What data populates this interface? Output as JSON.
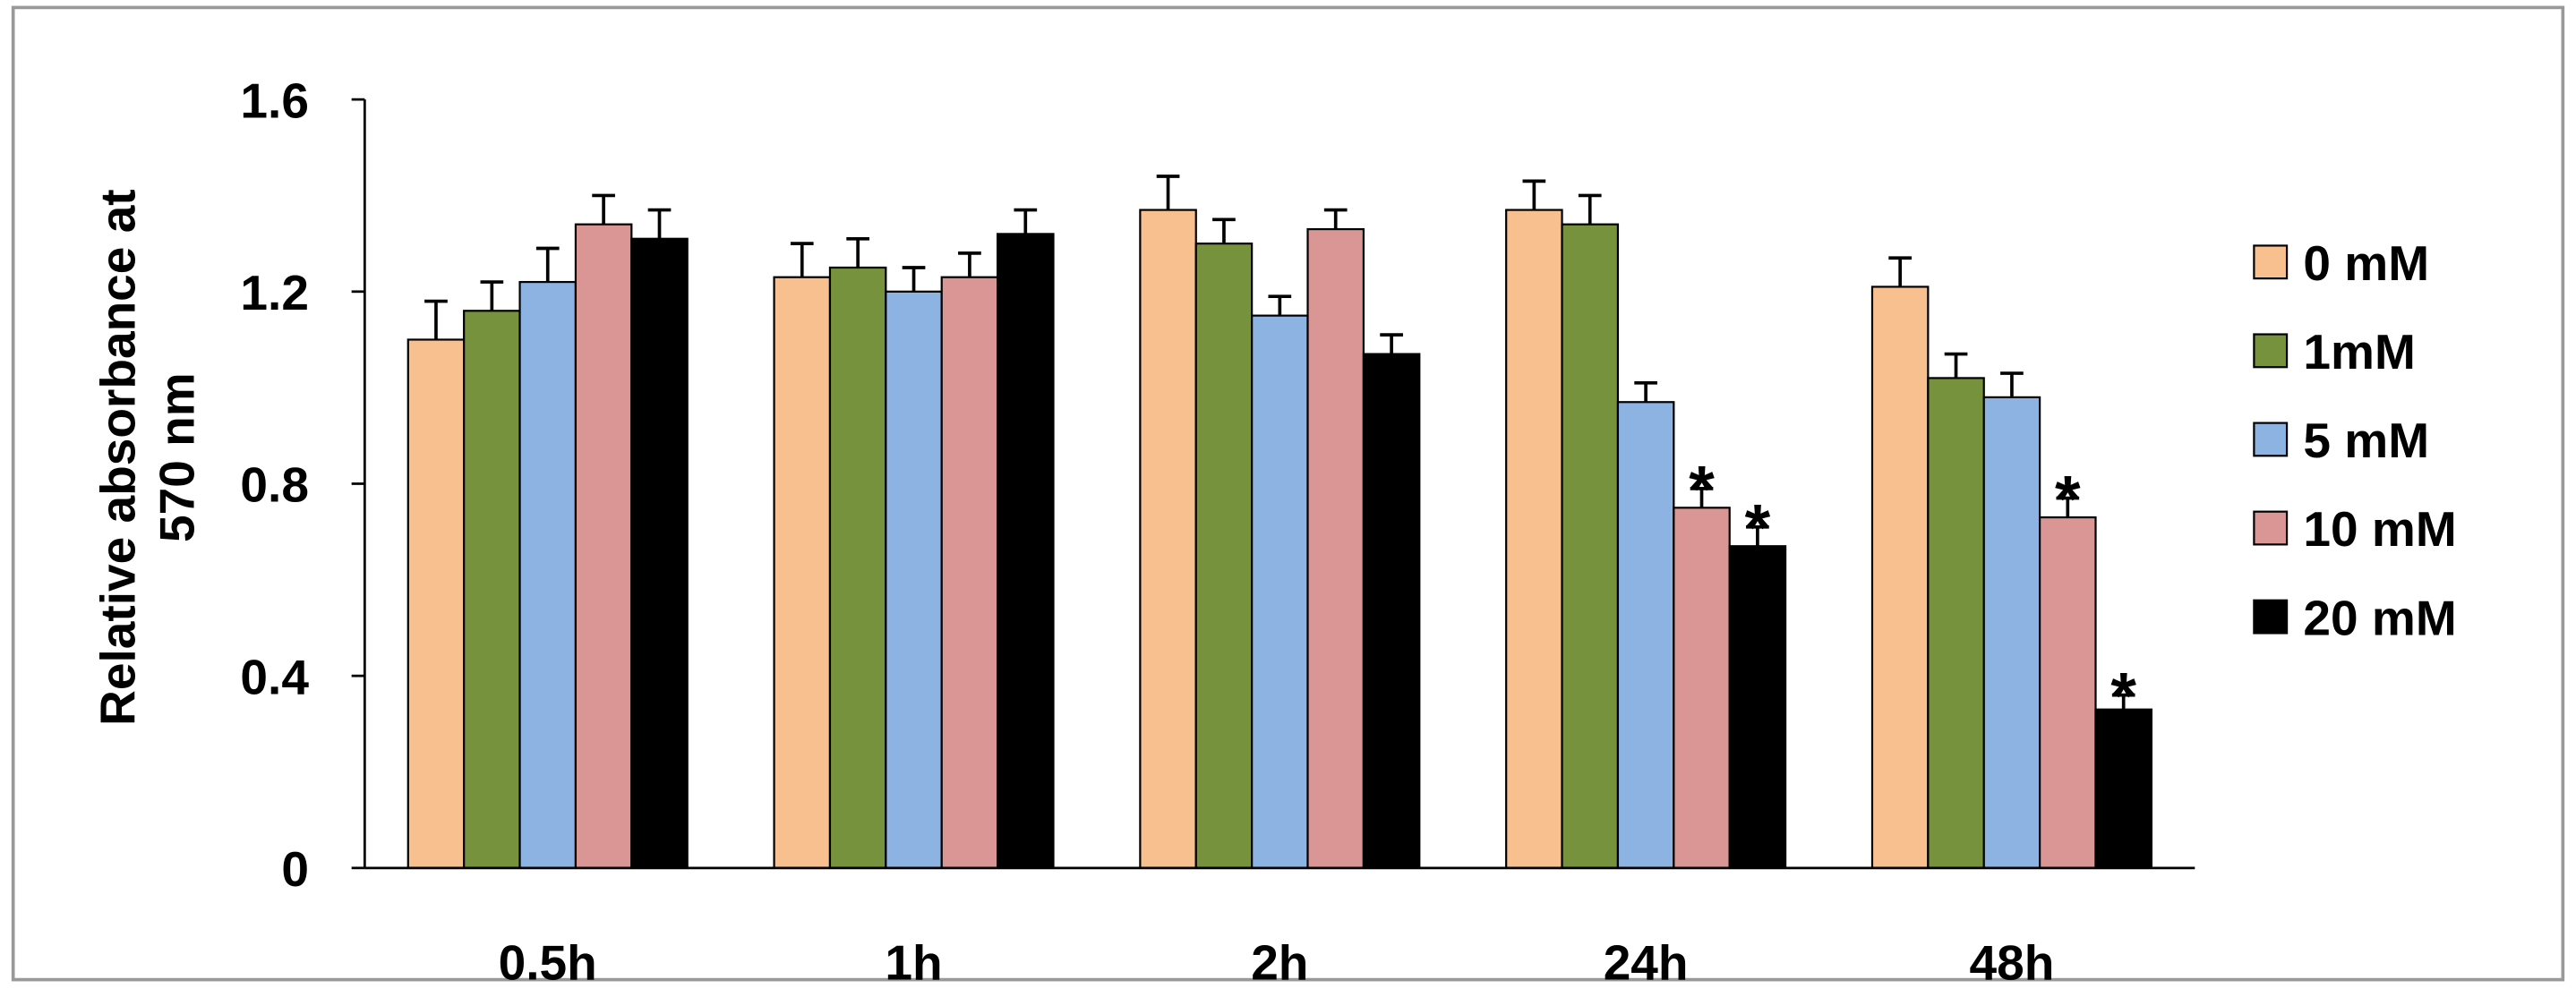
{
  "chart_data": {
    "type": "bar",
    "ylabel": [
      "Relative absorbance at",
      "570 nm"
    ],
    "categories": [
      "0.5h",
      "1h",
      "2h",
      "24h",
      "48h"
    ],
    "ylim": [
      0,
      1.6
    ],
    "yticks": [
      0,
      0.4,
      0.8,
      1.2,
      1.6
    ],
    "legend": "right",
    "series": [
      {
        "name": "0 mM",
        "color": "#F9C08F",
        "values": [
          1.1,
          1.23,
          1.37,
          1.37,
          1.21
        ],
        "errors": [
          0.08,
          0.07,
          0.07,
          0.06,
          0.06
        ]
      },
      {
        "name": "1mM",
        "color": "#76923C",
        "values": [
          1.16,
          1.25,
          1.3,
          1.34,
          1.02
        ],
        "errors": [
          0.06,
          0.06,
          0.05,
          0.06,
          0.05
        ]
      },
      {
        "name": "5 mM",
        "color": "#8DB3E2",
        "values": [
          1.22,
          1.2,
          1.15,
          0.97,
          0.98
        ],
        "errors": [
          0.07,
          0.05,
          0.04,
          0.04,
          0.05
        ]
      },
      {
        "name": "10 mM",
        "color": "#D99694",
        "values": [
          1.34,
          1.23,
          1.33,
          0.75,
          0.73
        ],
        "errors": [
          0.06,
          0.05,
          0.04,
          0.04,
          0.04
        ],
        "annotations": [
          null,
          null,
          null,
          "*",
          "*"
        ]
      },
      {
        "name": "20 mM",
        "color": "#000000",
        "values": [
          1.31,
          1.32,
          1.07,
          0.67,
          0.33
        ],
        "errors": [
          0.06,
          0.05,
          0.04,
          0.04,
          0.03
        ],
        "annotations": [
          null,
          null,
          null,
          "*",
          "*"
        ]
      }
    ]
  }
}
